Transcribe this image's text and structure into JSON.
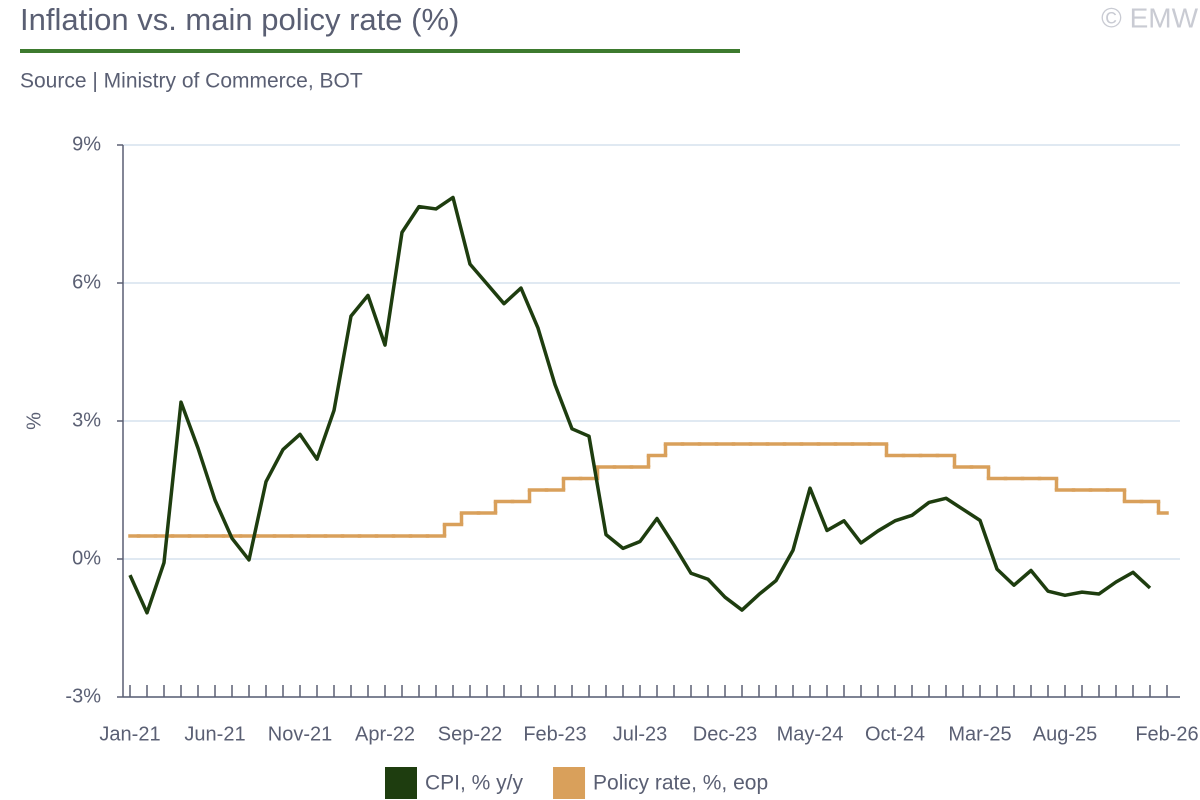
{
  "chart_data": {
    "type": "line",
    "title": "Inflation vs. main policy rate (%)",
    "subtitle": "Source | Ministry of Commerce, BOT",
    "watermark": "© EMW",
    "ylabel": "%",
    "categories": [
      "Jan-21",
      null,
      null,
      null,
      null,
      "Jun-21",
      null,
      null,
      null,
      null,
      "Nov-21",
      null,
      null,
      null,
      null,
      "Apr-22",
      null,
      null,
      null,
      null,
      "Sep-22",
      null,
      null,
      null,
      null,
      "Feb-23",
      null,
      null,
      null,
      null,
      "Jul-23",
      null,
      null,
      null,
      null,
      "Dec-23",
      null,
      null,
      null,
      null,
      "May-24",
      null,
      null,
      null,
      null,
      "Oct-24",
      null,
      null,
      null,
      null,
      "Mar-25",
      null,
      null,
      null,
      null,
      "Aug-25",
      null,
      null,
      null,
      null,
      null,
      "Feb-26"
    ],
    "series": [
      {
        "name": "CPI, % y/y",
        "color": "#1e3d0f",
        "values": [
          -0.35,
          -1.17,
          -0.08,
          3.41,
          2.41,
          1.28,
          0.45,
          -0.02,
          1.68,
          2.38,
          2.71,
          2.17,
          3.23,
          5.28,
          5.73,
          4.65,
          7.1,
          7.66,
          7.61,
          7.86,
          6.41,
          5.98,
          5.55,
          5.89,
          5.02,
          3.79,
          2.83,
          2.67,
          0.53,
          0.23,
          0.38,
          0.88,
          0.3,
          -0.31,
          -0.44,
          -0.83,
          -1.11,
          -0.77,
          -0.47,
          0.19,
          1.54,
          0.62,
          0.83,
          0.35,
          0.61,
          0.83,
          0.95,
          1.23,
          1.32,
          1.08,
          0.84,
          -0.22,
          -0.57,
          -0.25,
          -0.7,
          -0.79,
          -0.72,
          -0.76,
          -0.5,
          -0.29,
          -0.63,
          null
        ]
      },
      {
        "name": "Policy rate, %, eop",
        "color": "#d9a05b",
        "drawstyle": "steps-mid",
        "values": [
          0.5,
          0.5,
          0.5,
          0.5,
          0.5,
          0.5,
          0.5,
          0.5,
          0.5,
          0.5,
          0.5,
          0.5,
          0.5,
          0.5,
          0.5,
          0.5,
          0.5,
          0.5,
          0.5,
          0.75,
          1.0,
          1.0,
          1.25,
          1.25,
          1.5,
          1.5,
          1.75,
          1.75,
          2.0,
          2.0,
          2.0,
          2.25,
          2.5,
          2.5,
          2.5,
          2.5,
          2.5,
          2.5,
          2.5,
          2.5,
          2.5,
          2.5,
          2.5,
          2.5,
          2.5,
          2.25,
          2.25,
          2.25,
          2.25,
          2.0,
          2.0,
          1.75,
          1.75,
          1.75,
          1.75,
          1.5,
          1.5,
          1.5,
          1.5,
          1.25,
          1.25,
          1.0
        ]
      }
    ],
    "ylim": [
      -3,
      9
    ],
    "yticks": [
      {
        "value": -3,
        "label": "-3%"
      },
      {
        "value": 0,
        "label": "0%"
      },
      {
        "value": 3,
        "label": "3%"
      },
      {
        "value": 6,
        "label": "6%"
      },
      {
        "value": 9,
        "label": "9%"
      }
    ],
    "grid": true
  }
}
